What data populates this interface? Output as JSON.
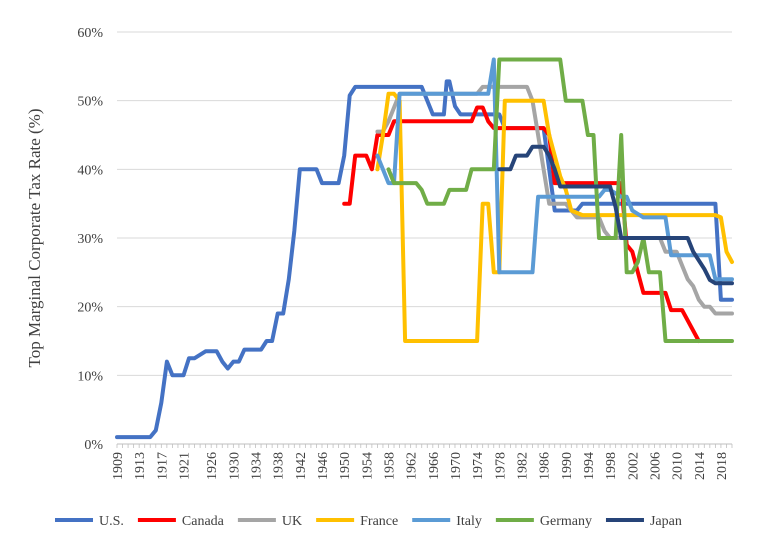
{
  "chart_data": {
    "type": "line",
    "title": "",
    "xlabel": "",
    "ylabel": "Top Marginal Corporate Tax Rate (%)",
    "ylim": [
      0,
      60
    ],
    "yticks": [
      0,
      10,
      20,
      30,
      40,
      50,
      60
    ],
    "ytick_format": "percent",
    "xlim": [
      1909,
      2020
    ],
    "xticks": [
      1909,
      1913,
      1917,
      1921,
      1926,
      1930,
      1934,
      1938,
      1942,
      1946,
      1950,
      1954,
      1958,
      1962,
      1966,
      1970,
      1974,
      1978,
      1982,
      1986,
      1990,
      1994,
      1998,
      2002,
      2006,
      2010,
      2014,
      2018
    ],
    "grid": "horizontal",
    "legend_position": "bottom",
    "series": [
      {
        "name": "U.S.",
        "color": "#4472C4",
        "points": [
          [
            1909,
            1
          ],
          [
            1913,
            1
          ],
          [
            1915,
            1
          ],
          [
            1916,
            2
          ],
          [
            1917,
            6
          ],
          [
            1918,
            12
          ],
          [
            1919,
            10
          ],
          [
            1921,
            10
          ],
          [
            1922,
            12.5
          ],
          [
            1923,
            12.5
          ],
          [
            1925,
            13.5
          ],
          [
            1926,
            13.5
          ],
          [
            1927,
            13.5
          ],
          [
            1928,
            12
          ],
          [
            1929,
            11
          ],
          [
            1930,
            12
          ],
          [
            1931,
            12
          ],
          [
            1932,
            13.75
          ],
          [
            1935,
            13.75
          ],
          [
            1936,
            15
          ],
          [
            1937,
            15
          ],
          [
            1938,
            19
          ],
          [
            1939,
            19
          ],
          [
            1940,
            24
          ],
          [
            1941,
            31
          ],
          [
            1942,
            40
          ],
          [
            1945,
            40
          ],
          [
            1946,
            38
          ],
          [
            1949,
            38
          ],
          [
            1950,
            42
          ],
          [
            1951,
            50.75
          ],
          [
            1952,
            52
          ],
          [
            1964,
            52
          ],
          [
            1965,
            50
          ],
          [
            1966,
            48
          ],
          [
            1968,
            48
          ],
          [
            1968.5,
            52.8
          ],
          [
            1969,
            52.8
          ],
          [
            1970,
            49.2
          ],
          [
            1971,
            48
          ],
          [
            1978,
            48
          ],
          [
            1979,
            46
          ],
          [
            1986,
            46
          ],
          [
            1987,
            40
          ],
          [
            1988,
            34
          ],
          [
            1992,
            34
          ],
          [
            1993,
            35
          ],
          [
            2017,
            35
          ],
          [
            2018,
            21
          ],
          [
            2020,
            21
          ]
        ]
      },
      {
        "name": "Canada",
        "color": "#FF0000",
        "points": [
          [
            1950,
            35
          ],
          [
            1951,
            35
          ],
          [
            1952,
            42
          ],
          [
            1954,
            42
          ],
          [
            1955,
            40
          ],
          [
            1956,
            45
          ],
          [
            1958,
            45
          ],
          [
            1959,
            47
          ],
          [
            1972,
            47
          ],
          [
            1973,
            47
          ],
          [
            1974,
            49
          ],
          [
            1975,
            49
          ],
          [
            1976,
            47
          ],
          [
            1977,
            46
          ],
          [
            1986,
            46
          ],
          [
            1987,
            45
          ],
          [
            1988,
            38
          ],
          [
            2000,
            38
          ],
          [
            2001,
            29
          ],
          [
            2002,
            28
          ],
          [
            2004,
            22
          ],
          [
            2006,
            22
          ],
          [
            2008,
            22
          ],
          [
            2009,
            19.5
          ],
          [
            2011,
            19.5
          ],
          [
            2014,
            15
          ]
        ]
      },
      {
        "name": "UK",
        "color": "#A5A5A5",
        "points": [
          [
            1956,
            45.5
          ],
          [
            1957,
            45.5
          ],
          [
            1958,
            47
          ],
          [
            1960,
            51
          ],
          [
            1963,
            51
          ],
          [
            1964,
            51
          ],
          [
            1965,
            51
          ],
          [
            1966,
            51
          ],
          [
            1973,
            51
          ],
          [
            1974,
            51
          ],
          [
            1975,
            52
          ],
          [
            1983,
            52
          ],
          [
            1984,
            50
          ],
          [
            1985,
            45
          ],
          [
            1986,
            40
          ],
          [
            1987,
            35
          ],
          [
            1990,
            35
          ],
          [
            1991,
            34
          ],
          [
            1992,
            33
          ],
          [
            1996,
            33
          ],
          [
            1997,
            31
          ],
          [
            1998,
            30
          ],
          [
            1999,
            30
          ],
          [
            2007,
            30
          ],
          [
            2008,
            28
          ],
          [
            2010,
            28
          ],
          [
            2011,
            26
          ],
          [
            2012,
            24
          ],
          [
            2013,
            23
          ],
          [
            2014,
            21
          ],
          [
            2015,
            20
          ],
          [
            2016,
            20
          ],
          [
            2017,
            19
          ],
          [
            2020,
            19
          ]
        ]
      },
      {
        "name": "France",
        "color": "#FFC000",
        "points": [
          [
            1956,
            40
          ],
          [
            1957,
            45
          ],
          [
            1958,
            51
          ],
          [
            1959,
            51
          ],
          [
            1960,
            50
          ],
          [
            1961,
            15
          ],
          [
            1974,
            15
          ],
          [
            1975,
            35
          ],
          [
            1976,
            35
          ],
          [
            1977,
            25
          ],
          [
            1978,
            25
          ],
          [
            1979,
            50
          ],
          [
            1986,
            50
          ],
          [
            1987,
            45
          ],
          [
            1988,
            42
          ],
          [
            1989,
            39
          ],
          [
            1990,
            37
          ],
          [
            1991,
            34
          ],
          [
            1993,
            33.33
          ],
          [
            2017,
            33.33
          ],
          [
            2018,
            33
          ],
          [
            2019,
            28
          ],
          [
            2020,
            26.5
          ]
        ]
      },
      {
        "name": "Italy",
        "color": "#5B9BD5",
        "points": [
          [
            1956,
            42
          ],
          [
            1957,
            40
          ],
          [
            1958,
            38
          ],
          [
            1959,
            38
          ],
          [
            1960,
            51
          ],
          [
            1976,
            51
          ],
          [
            1977,
            56
          ],
          [
            1978,
            25
          ],
          [
            1984,
            25
          ],
          [
            1985,
            36
          ],
          [
            1991,
            36
          ],
          [
            1992,
            36
          ],
          [
            1996,
            36
          ],
          [
            1997,
            37
          ],
          [
            1998,
            37
          ],
          [
            2000,
            36
          ],
          [
            2001,
            36
          ],
          [
            2002,
            34
          ],
          [
            2004,
            33
          ],
          [
            2008,
            33
          ],
          [
            2009,
            27.5
          ],
          [
            2011,
            27.5
          ],
          [
            2012,
            27.5
          ],
          [
            2016,
            27.5
          ],
          [
            2017,
            24
          ],
          [
            2020,
            24
          ]
        ]
      },
      {
        "name": "Germany",
        "color": "#70AD47",
        "points": [
          [
            1958,
            40
          ],
          [
            1959,
            38
          ],
          [
            1963,
            38
          ],
          [
            1964,
            37
          ],
          [
            1965,
            35
          ],
          [
            1968,
            35
          ],
          [
            1969,
            37
          ],
          [
            1972,
            37
          ],
          [
            1973,
            40
          ],
          [
            1976,
            40
          ],
          [
            1977,
            40
          ],
          [
            1978,
            56
          ],
          [
            1989,
            56
          ],
          [
            1990,
            50
          ],
          [
            1993,
            50
          ],
          [
            1994,
            45
          ],
          [
            1995,
            45
          ],
          [
            1996,
            30
          ],
          [
            1999,
            30
          ],
          [
            2000,
            45
          ],
          [
            2001,
            25
          ],
          [
            2002,
            25
          ],
          [
            2003,
            26.5
          ],
          [
            2004,
            30
          ],
          [
            2005,
            25
          ],
          [
            2007,
            25
          ],
          [
            2008,
            15
          ],
          [
            2020,
            15
          ]
        ]
      },
      {
        "name": "Japan",
        "color": "#264478",
        "points": [
          [
            1978,
            40
          ],
          [
            1980,
            40
          ],
          [
            1981,
            42
          ],
          [
            1983,
            42
          ],
          [
            1984,
            43.3
          ],
          [
            1986,
            43.3
          ],
          [
            1987,
            42
          ],
          [
            1988,
            40
          ],
          [
            1989,
            37.5
          ],
          [
            1998,
            37.5
          ],
          [
            1999,
            34.5
          ],
          [
            2000,
            30
          ],
          [
            2012,
            30
          ],
          [
            2013,
            28
          ],
          [
            2015,
            25.5
          ],
          [
            2016,
            23.9
          ],
          [
            2017,
            23.4
          ],
          [
            2020,
            23.4
          ]
        ]
      }
    ]
  }
}
